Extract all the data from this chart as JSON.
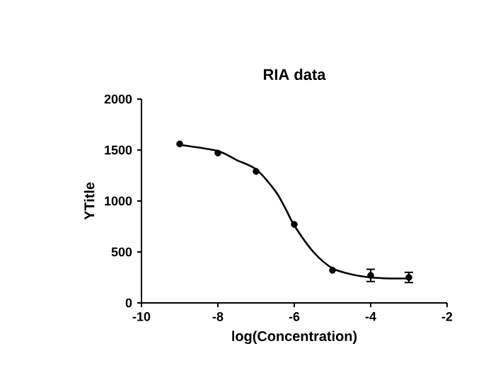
{
  "chart_data": {
    "type": "scatter",
    "title": "RIA data",
    "xlabel": "log(Concentration)",
    "ylabel": "YTitle",
    "xlim": [
      -10,
      -2
    ],
    "xticks": [
      -10,
      -8,
      -6,
      -4,
      -2
    ],
    "ylim": [
      0,
      2000
    ],
    "yticks": [
      0,
      500,
      1000,
      1500,
      2000
    ],
    "grid": false,
    "series": [
      {
        "marker": "circle",
        "color": "#000000",
        "x": [
          -9,
          -8,
          -7,
          -6,
          -5,
          -4,
          -3
        ],
        "values": [
          1560,
          1470,
          1290,
          770,
          320,
          270,
          250
        ],
        "errors": [
          null,
          null,
          null,
          null,
          null,
          60,
          50
        ]
      },
      {
        "type": "line",
        "marker": "none",
        "color": "#000000",
        "x": [
          -9,
          -8,
          -7.5,
          -7,
          -6.5,
          -6.25,
          -6,
          -5.5,
          -5,
          -4.5,
          -4,
          -3.5,
          -3
        ],
        "values": [
          1550,
          1490,
          1400,
          1310,
          1100,
          940,
          760,
          500,
          340,
          280,
          250,
          240,
          240
        ]
      }
    ]
  }
}
